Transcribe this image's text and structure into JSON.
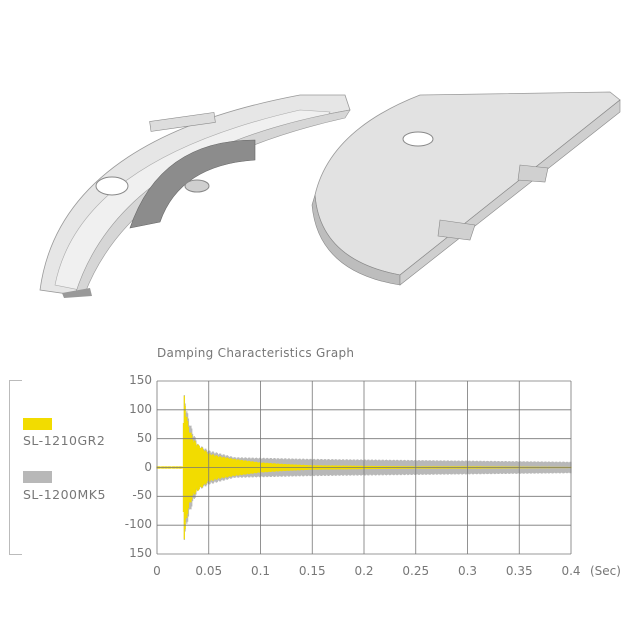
{
  "illustrations": [
    {
      "name": "platter-underside"
    },
    {
      "name": "platter-top"
    }
  ],
  "chart_data": {
    "type": "area",
    "title": "Damping Characteristics Graph",
    "xlabel": "(Sec)",
    "ylabel": "",
    "xlim": [
      0,
      0.4
    ],
    "ylim": [
      -150,
      150
    ],
    "grid": true,
    "legend_placement": "left",
    "x_ticks": [
      "0",
      "0.05",
      "0.1",
      "0.15",
      "0.2",
      "0.25",
      "0.3",
      "0.35",
      "0.4"
    ],
    "y_ticks": [
      "150",
      "100",
      "50",
      "0",
      "-50",
      "-100",
      "150"
    ],
    "x": [
      0,
      0.025,
      0.026,
      0.03,
      0.035,
      0.04,
      0.05,
      0.06,
      0.075,
      0.1,
      0.125,
      0.15,
      0.2,
      0.25,
      0.3,
      0.35,
      0.4
    ],
    "series": [
      {
        "name": "SL-1200MK5",
        "color": "#b8b8b8",
        "amplitude": [
          2,
          2,
          130,
          90,
          60,
          40,
          30,
          25,
          18,
          17,
          16,
          15,
          14,
          13,
          12,
          11,
          10
        ]
      },
      {
        "name": "SL-1210GR2",
        "color": "#f2dc00",
        "amplitude": [
          2,
          2,
          130,
          75,
          50,
          40,
          25,
          20,
          15,
          9,
          6,
          4,
          3,
          2,
          2,
          1.5,
          1
        ]
      }
    ]
  }
}
